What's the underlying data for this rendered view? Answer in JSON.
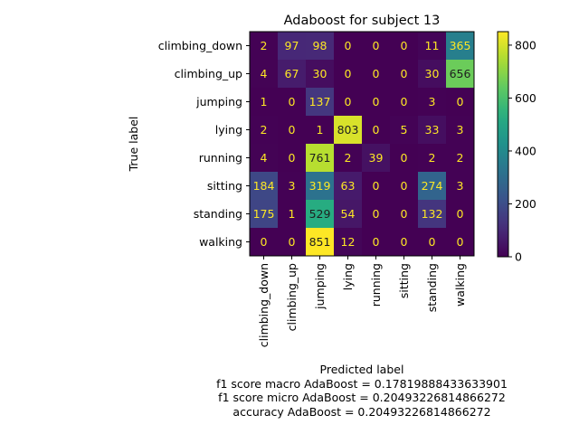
{
  "chart_data": {
    "type": "heatmap",
    "title": "Adaboost for subject 13",
    "xlabel": "Predicted label",
    "ylabel": "True label",
    "x_categories": [
      "climbing_down",
      "climbing_up",
      "jumping",
      "lying",
      "running",
      "sitting",
      "standing",
      "walking"
    ],
    "y_categories": [
      "climbing_down",
      "climbing_up",
      "jumping",
      "lying",
      "running",
      "sitting",
      "standing",
      "walking"
    ],
    "values": [
      [
        2,
        97,
        98,
        0,
        0,
        0,
        11,
        365
      ],
      [
        4,
        67,
        30,
        0,
        0,
        0,
        30,
        656
      ],
      [
        1,
        0,
        137,
        0,
        0,
        0,
        3,
        0
      ],
      [
        2,
        0,
        1,
        803,
        0,
        5,
        33,
        3
      ],
      [
        4,
        0,
        761,
        2,
        39,
        0,
        2,
        2
      ],
      [
        184,
        3,
        319,
        63,
        0,
        0,
        274,
        3
      ],
      [
        175,
        1,
        529,
        54,
        0,
        0,
        132,
        0
      ],
      [
        0,
        0,
        851,
        12,
        0,
        0,
        0,
        0
      ]
    ],
    "colormap": "viridis",
    "colorbar": {
      "ticks": [
        0,
        200,
        400,
        600,
        800
      ],
      "range": [
        0,
        851
      ]
    },
    "notes": [
      "f1 score macro AdaBoost = 0.17819888433633901",
      "f1 score micro AdaBoost = 0.20493226814866272",
      "accuracy AdaBoost = 0.20493226814866272"
    ]
  },
  "colors": {
    "text_on_dark": "#fde725",
    "text_on_light": "#1f1f1f",
    "axis": "#000000"
  }
}
